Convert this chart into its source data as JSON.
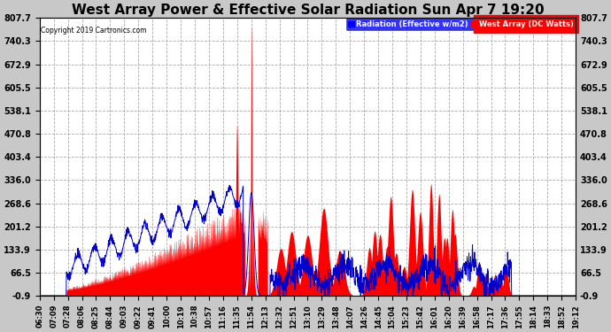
{
  "title": "West Array Power & Effective Solar Radiation Sun Apr 7 19:20",
  "copyright": "Copyright 2019 Cartronics.com",
  "legend_label_radiation": "Radiation (Effective w/m2)",
  "legend_label_power": "West Array (DC Watts)",
  "ymin": -0.9,
  "ymax": 807.7,
  "yticks": [
    807.7,
    740.3,
    672.9,
    605.5,
    538.1,
    470.8,
    403.4,
    336.0,
    268.6,
    201.2,
    133.9,
    66.5,
    -0.9
  ],
  "xtick_labels": [
    "06:30",
    "07:09",
    "07:28",
    "08:06",
    "08:25",
    "08:44",
    "09:03",
    "09:22",
    "09:41",
    "10:00",
    "10:19",
    "10:38",
    "10:57",
    "11:16",
    "11:35",
    "11:54",
    "12:13",
    "12:32",
    "12:51",
    "13:10",
    "13:29",
    "13:48",
    "14:07",
    "14:26",
    "14:45",
    "15:04",
    "15:23",
    "15:42",
    "16:01",
    "16:20",
    "16:39",
    "16:58",
    "17:17",
    "17:36",
    "17:55",
    "18:14",
    "18:33",
    "18:52",
    "19:12"
  ],
  "power_color": "#ff0000",
  "radiation_color": "#0000cc",
  "plot_bg": "#ffffff",
  "fig_bg": "#c8c8c8",
  "grid_color": "#aaaaaa",
  "title_fontsize": 11,
  "tick_fontsize": 6,
  "ytick_fontsize": 7
}
